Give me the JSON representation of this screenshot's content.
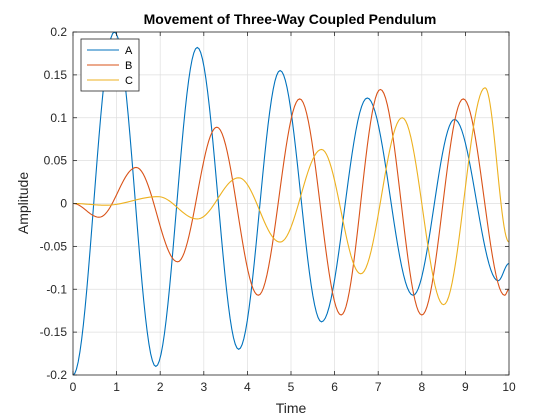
{
  "chart_data": {
    "type": "line",
    "title": "Movement of Three-Way Coupled Pendulum",
    "xlabel": "Time",
    "ylabel": "Amplitude",
    "xlim": [
      0,
      10
    ],
    "ylim": [
      -0.2,
      0.2
    ],
    "grid": true,
    "legend_position": "top-left",
    "xticks": [
      "0",
      "1",
      "2",
      "3",
      "4",
      "5",
      "6",
      "7",
      "8",
      "9",
      "10"
    ],
    "yticks": [
      "-0.2",
      "-0.15",
      "-0.1",
      "-0.05",
      "0",
      "0.05",
      "0.1",
      "0.15",
      "0.2"
    ],
    "series": [
      {
        "name": "A",
        "color": "#0072BD",
        "points": [
          [
            0,
            -0.2
          ],
          [
            0.95,
            0.2
          ],
          [
            1.9,
            -0.19
          ],
          [
            2.85,
            0.182
          ],
          [
            3.8,
            -0.17
          ],
          [
            4.75,
            0.155
          ],
          [
            5.7,
            -0.138
          ],
          [
            6.75,
            0.123
          ],
          [
            7.8,
            -0.107
          ],
          [
            8.75,
            0.098
          ],
          [
            9.75,
            -0.09
          ],
          [
            10,
            -0.07
          ]
        ]
      },
      {
        "name": "B",
        "color": "#D95319",
        "points": [
          [
            0,
            0
          ],
          [
            0.6,
            -0.016
          ],
          [
            1.45,
            0.042
          ],
          [
            2.4,
            -0.068
          ],
          [
            3.3,
            0.089
          ],
          [
            4.25,
            -0.107
          ],
          [
            5.2,
            0.122
          ],
          [
            6.15,
            -0.13
          ],
          [
            7.05,
            0.133
          ],
          [
            8.0,
            -0.13
          ],
          [
            8.95,
            0.122
          ],
          [
            9.9,
            -0.107
          ],
          [
            10,
            -0.1
          ]
        ]
      },
      {
        "name": "C",
        "color": "#EDB120",
        "points": [
          [
            0,
            0
          ],
          [
            0.75,
            -0.002
          ],
          [
            1.95,
            0.008
          ],
          [
            2.85,
            -0.018
          ],
          [
            3.8,
            0.03
          ],
          [
            4.75,
            -0.045
          ],
          [
            5.7,
            0.063
          ],
          [
            6.6,
            -0.082
          ],
          [
            7.55,
            0.1
          ],
          [
            8.5,
            -0.118
          ],
          [
            9.45,
            0.135
          ],
          [
            10,
            -0.045
          ]
        ]
      }
    ]
  }
}
